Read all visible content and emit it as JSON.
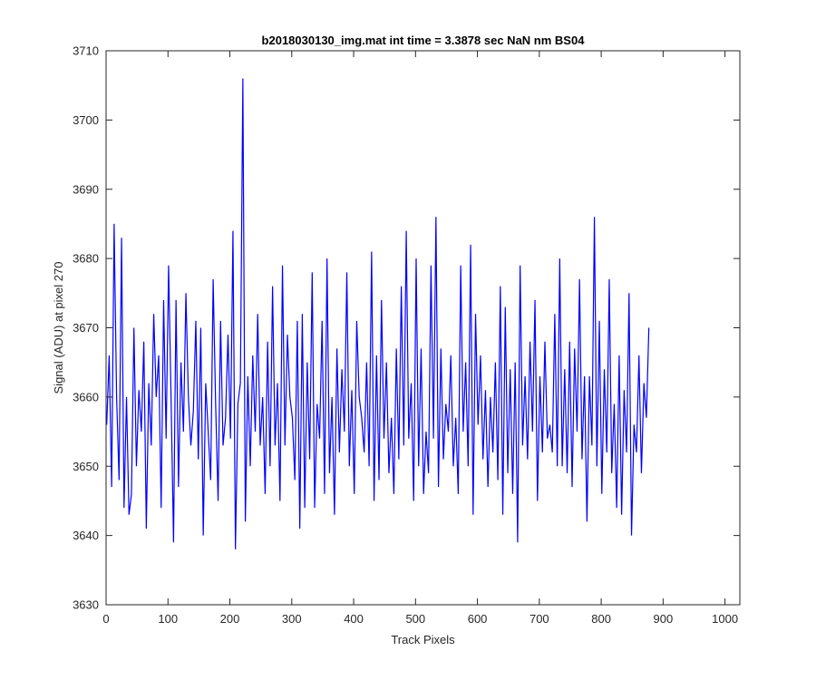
{
  "chart_data": {
    "type": "line",
    "title": "b2018030130_img.mat int time = 3.3878 sec  NaN nm BS04",
    "xlabel": "Track Pixels",
    "ylabel": "Signal (ADU) at pixel 270",
    "xlim": [
      0,
      1024
    ],
    "ylim": [
      3630,
      3710
    ],
    "xticks": [
      0,
      100,
      200,
      300,
      400,
      500,
      600,
      700,
      800,
      900,
      1000
    ],
    "xtick_labels": [
      "0",
      "100",
      "200",
      "300",
      "400",
      "500",
      "600",
      "700",
      "800",
      "900",
      "1000"
    ],
    "yticks": [
      3630,
      3640,
      3650,
      3660,
      3670,
      3680,
      3690,
      3700,
      3710
    ],
    "ytick_labels": [
      "3630",
      "3640",
      "3650",
      "3660",
      "3670",
      "3680",
      "3690",
      "3700",
      "3710"
    ],
    "grid": false,
    "series_color": "#0000ff",
    "series": [
      {
        "x_start": 1,
        "x_step": 4,
        "values": [
          3656,
          3666,
          3647,
          3685,
          3660,
          3648,
          3683,
          3644,
          3660,
          3643,
          3646,
          3670,
          3650,
          3661,
          3655,
          3668,
          3641,
          3662,
          3653,
          3672,
          3660,
          3666,
          3644,
          3674,
          3654,
          3679,
          3660,
          3639,
          3674,
          3647,
          3665,
          3655,
          3675,
          3660,
          3653,
          3658,
          3671,
          3651,
          3670,
          3640,
          3662,
          3655,
          3648,
          3677,
          3659,
          3645,
          3671,
          3653,
          3657,
          3669,
          3654,
          3684,
          3638,
          3659,
          3662,
          3706,
          3642,
          3663,
          3650,
          3666,
          3655,
          3672,
          3653,
          3660,
          3646,
          3668,
          3650,
          3676,
          3653,
          3662,
          3645,
          3679,
          3653,
          3669,
          3660,
          3657,
          3648,
          3671,
          3641,
          3672,
          3644,
          3665,
          3651,
          3678,
          3644,
          3659,
          3654,
          3671,
          3646,
          3680,
          3649,
          3660,
          3643,
          3667,
          3652,
          3664,
          3655,
          3678,
          3650,
          3661,
          3646,
          3671,
          3660,
          3657,
          3652,
          3665,
          3650,
          3681,
          3645,
          3666,
          3648,
          3674,
          3654,
          3665,
          3649,
          3657,
          3646,
          3667,
          3651,
          3676,
          3653,
          3684,
          3654,
          3662,
          3645,
          3680,
          3650,
          3667,
          3646,
          3655,
          3649,
          3679,
          3654,
          3686,
          3647,
          3667,
          3651,
          3659,
          3655,
          3666,
          3650,
          3657,
          3646,
          3679,
          3655,
          3665,
          3650,
          3682,
          3643,
          3672,
          3656,
          3666,
          3651,
          3661,
          3647,
          3660,
          3652,
          3665,
          3648,
          3676,
          3643,
          3673,
          3649,
          3664,
          3646,
          3665,
          3639,
          3679,
          3653,
          3663,
          3651,
          3668,
          3655,
          3674,
          3645,
          3663,
          3652,
          3668,
          3654,
          3656,
          3652,
          3672,
          3650,
          3680,
          3650,
          3664,
          3649,
          3668,
          3647,
          3667,
          3655,
          3677,
          3651,
          3663,
          3642,
          3663,
          3653,
          3686,
          3650,
          3671,
          3646,
          3664,
          3652,
          3677,
          3649,
          3659,
          3644,
          3666,
          3643,
          3661,
          3652,
          3675,
          3640,
          3656,
          3652,
          3666,
          3649,
          3662,
          3657,
          3670
        ]
      }
    ]
  }
}
